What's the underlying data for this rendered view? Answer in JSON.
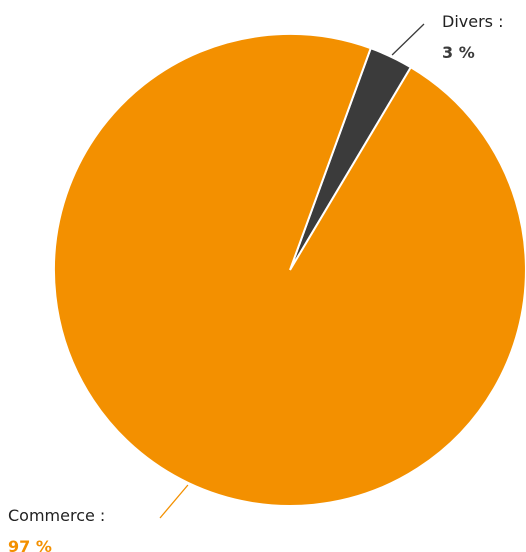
{
  "chart_data": {
    "type": "pie",
    "title": "",
    "slices": [
      {
        "label": "Divers :",
        "value": 3,
        "value_label": "3 %",
        "color": "#3b3b3b"
      },
      {
        "label": "Commerce :",
        "value": 97,
        "value_label": "97 %",
        "color": "#f39000"
      }
    ],
    "legend": "none",
    "labels": "outside with leader lines"
  }
}
